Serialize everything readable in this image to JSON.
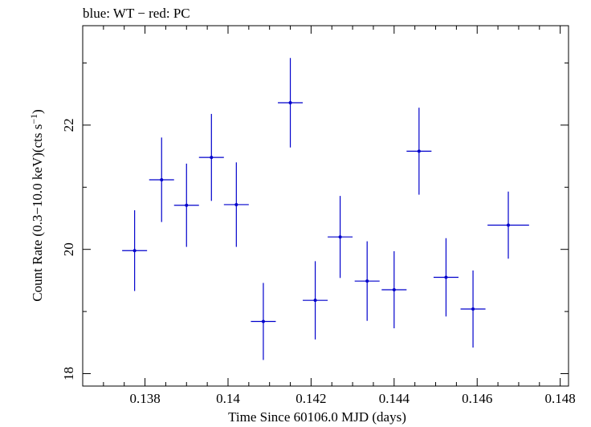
{
  "chart_data": {
    "type": "scatter",
    "title": "blue: WT − red: PC",
    "xlabel": "Time Since 60106.0 MJD (days)",
    "ylabel_main": "Count Rate (0.3−10.0 keV)(cts s",
    "ylabel_sup": "−1",
    "ylabel_end": ")",
    "xlim": [
      0.1365,
      0.1482
    ],
    "ylim": [
      17.8,
      23.6
    ],
    "x_ticks": [
      0.138,
      0.14,
      0.142,
      0.144,
      0.146,
      0.148
    ],
    "x_tick_labels": [
      "0.138",
      "0.14",
      "0.142",
      "0.144",
      "0.146",
      "0.148"
    ],
    "y_ticks": [
      18,
      20,
      22
    ],
    "y_tick_labels": [
      "18",
      "20",
      "22"
    ],
    "grid": false,
    "series": [
      {
        "color": "#0000cc",
        "points": [
          {
            "x": 0.13775,
            "xerr": 0.0003,
            "y": 19.98,
            "yerr": 0.65
          },
          {
            "x": 0.1384,
            "xerr": 0.0003,
            "y": 21.12,
            "yerr": 0.68
          },
          {
            "x": 0.139,
            "xerr": 0.0003,
            "y": 20.71,
            "yerr": 0.67
          },
          {
            "x": 0.1396,
            "xerr": 0.0003,
            "y": 21.48,
            "yerr": 0.7
          },
          {
            "x": 0.1402,
            "xerr": 0.0003,
            "y": 20.72,
            "yerr": 0.68
          },
          {
            "x": 0.14085,
            "xerr": 0.0003,
            "y": 18.84,
            "yerr": 0.62
          },
          {
            "x": 0.1415,
            "xerr": 0.0003,
            "y": 22.36,
            "yerr": 0.72
          },
          {
            "x": 0.1421,
            "xerr": 0.0003,
            "y": 19.18,
            "yerr": 0.63
          },
          {
            "x": 0.1427,
            "xerr": 0.0003,
            "y": 20.2,
            "yerr": 0.66
          },
          {
            "x": 0.14335,
            "xerr": 0.0003,
            "y": 19.49,
            "yerr": 0.64
          },
          {
            "x": 0.144,
            "xerr": 0.0003,
            "y": 19.35,
            "yerr": 0.62
          },
          {
            "x": 0.1446,
            "xerr": 0.0003,
            "y": 21.58,
            "yerr": 0.7
          },
          {
            "x": 0.14525,
            "xerr": 0.0003,
            "y": 19.55,
            "yerr": 0.63
          },
          {
            "x": 0.1459,
            "xerr": 0.0003,
            "y": 19.04,
            "yerr": 0.62
          },
          {
            "x": 0.14675,
            "xerr": 0.0005,
            "y": 20.39,
            "yerr": 0.54
          }
        ]
      }
    ]
  }
}
